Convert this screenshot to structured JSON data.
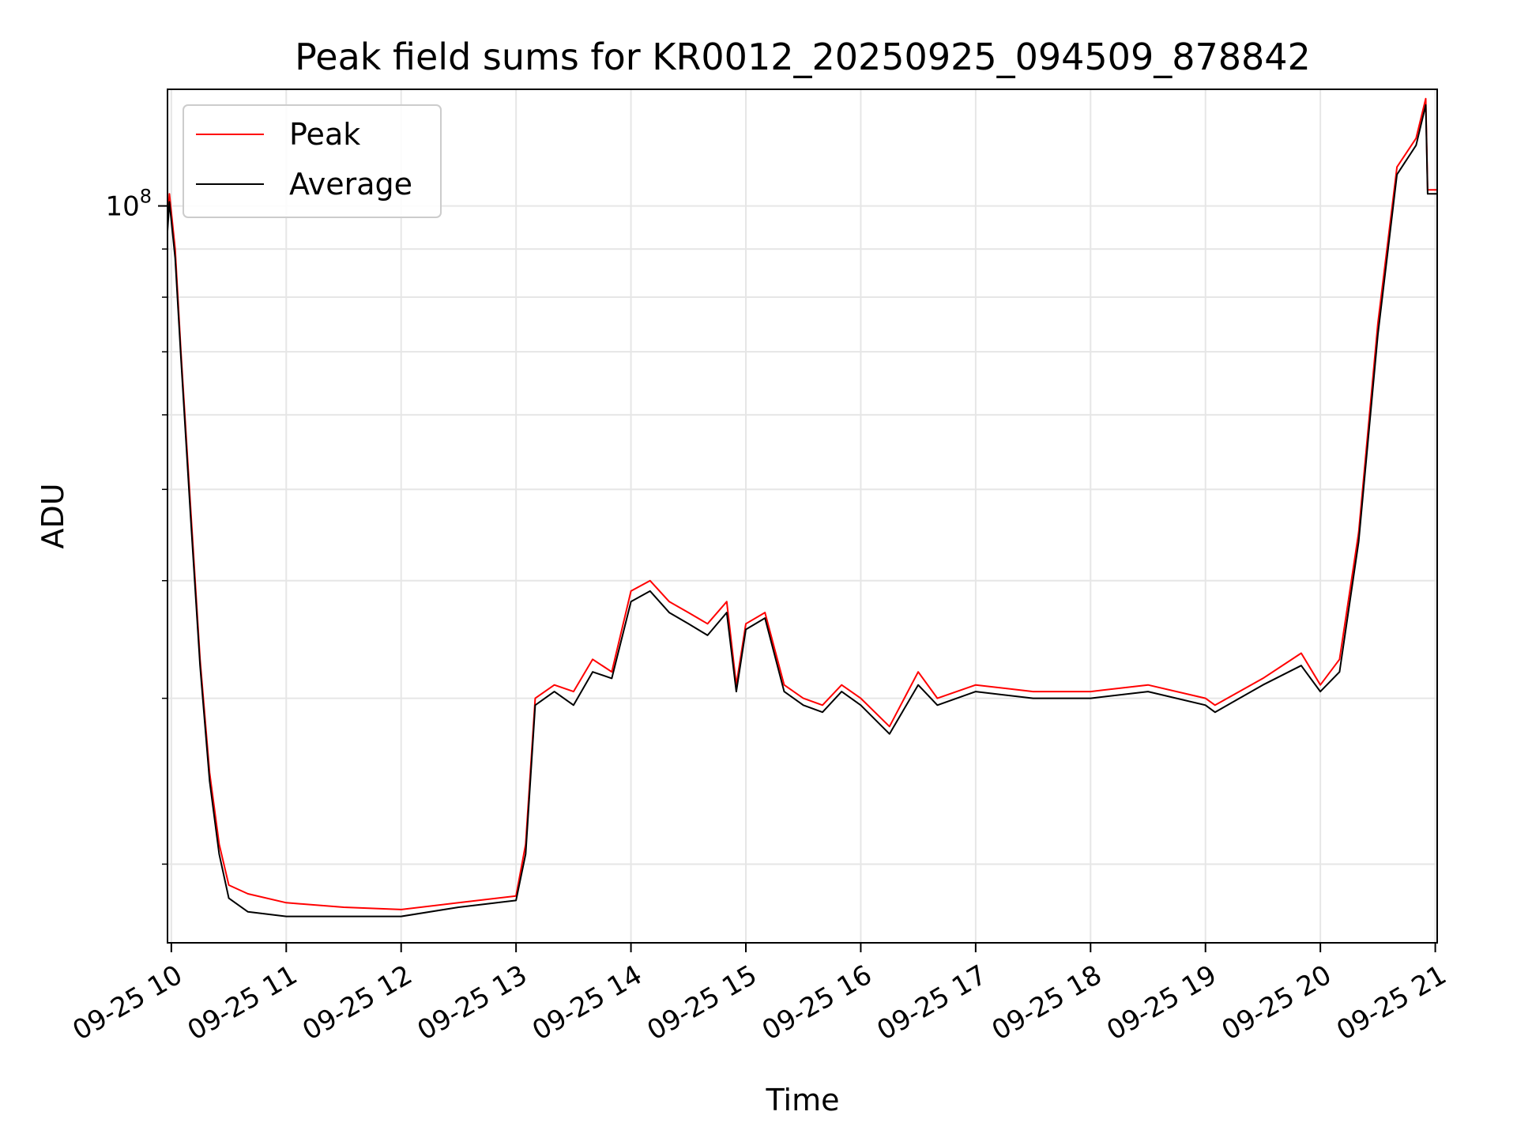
{
  "chart_data": {
    "type": "line",
    "title": "Peak field sums for KR0012_20250925_094509_878842",
    "xlabel": "Time",
    "ylabel": "ADU",
    "y_scale": "log",
    "grid": true,
    "legend_position": "top-left",
    "x_tick_labels": [
      "09-25 10",
      "09-25 11",
      "09-25 12",
      "09-25 13",
      "09-25 14",
      "09-25 15",
      "09-25 16",
      "09-25 17",
      "09-25 18",
      "09-25 19",
      "09-25 20",
      "09-25 21"
    ],
    "x_ticks": [
      "2025-09-25 10:00",
      "2025-09-25 11:00",
      "2025-09-25 12:00",
      "2025-09-25 13:00",
      "2025-09-25 14:00",
      "2025-09-25 15:00",
      "2025-09-25 16:00",
      "2025-09-25 17:00",
      "2025-09-25 18:00",
      "2025-09-25 19:00",
      "2025-09-25 20:00",
      "2025-09-25 21:00"
    ],
    "xlim": [
      "2025-09-25 09:58",
      "2025-09-25 21:01"
    ],
    "ylim": [
      16500000,
      133000000
    ],
    "y_major_ticks": [
      100000000
    ],
    "y_tick_labels": [
      "10^8"
    ],
    "y_minor_ticks": [
      20000000,
      30000000,
      40000000,
      50000000,
      60000000,
      70000000,
      80000000,
      90000000
    ],
    "series": [
      {
        "name": "Peak",
        "color": "#ff0000",
        "x": [
          "2025-09-25 09:58",
          "2025-09-25 09:59",
          "2025-09-25 10:02",
          "2025-09-25 10:05",
          "2025-09-25 10:10",
          "2025-09-25 10:15",
          "2025-09-25 10:20",
          "2025-09-25 10:25",
          "2025-09-25 10:30",
          "2025-09-25 10:40",
          "2025-09-25 11:00",
          "2025-09-25 11:30",
          "2025-09-25 12:00",
          "2025-09-25 12:30",
          "2025-09-25 13:00",
          "2025-09-25 13:05",
          "2025-09-25 13:10",
          "2025-09-25 13:20",
          "2025-09-25 13:30",
          "2025-09-25 13:40",
          "2025-09-25 13:50",
          "2025-09-25 14:00",
          "2025-09-25 14:10",
          "2025-09-25 14:20",
          "2025-09-25 14:30",
          "2025-09-25 14:40",
          "2025-09-25 14:50",
          "2025-09-25 14:55",
          "2025-09-25 15:00",
          "2025-09-25 15:10",
          "2025-09-25 15:20",
          "2025-09-25 15:30",
          "2025-09-25 15:40",
          "2025-09-25 15:50",
          "2025-09-25 16:00",
          "2025-09-25 16:15",
          "2025-09-25 16:30",
          "2025-09-25 16:40",
          "2025-09-25 17:00",
          "2025-09-25 17:30",
          "2025-09-25 18:00",
          "2025-09-25 18:30",
          "2025-09-25 19:00",
          "2025-09-25 19:05",
          "2025-09-25 19:30",
          "2025-09-25 19:50",
          "2025-09-25 20:00",
          "2025-09-25 20:10",
          "2025-09-25 20:20",
          "2025-09-25 20:30",
          "2025-09-25 20:40",
          "2025-09-25 20:50",
          "2025-09-25 20:55",
          "2025-09-25 20:56",
          "2025-09-25 21:01"
        ],
        "values": [
          95000000,
          103000000,
          90000000,
          70000000,
          48000000,
          33000000,
          25000000,
          21000000,
          19000000,
          18600000,
          18200000,
          18000000,
          17900000,
          18200000,
          18500000,
          21000000,
          30000000,
          31000000,
          30500000,
          33000000,
          32000000,
          39000000,
          40000000,
          38000000,
          37000000,
          36000000,
          38000000,
          31000000,
          36000000,
          37000000,
          31000000,
          30000000,
          29500000,
          31000000,
          30000000,
          28000000,
          32000000,
          30000000,
          31000000,
          30500000,
          30500000,
          31000000,
          30000000,
          29500000,
          31500000,
          33500000,
          31000000,
          33000000,
          45000000,
          75000000,
          110000000,
          118000000,
          130000000,
          104000000,
          104000000
        ]
      },
      {
        "name": "Average",
        "color": "#000000",
        "x": [
          "2025-09-25 09:58",
          "2025-09-25 09:59",
          "2025-09-25 10:02",
          "2025-09-25 10:05",
          "2025-09-25 10:10",
          "2025-09-25 10:15",
          "2025-09-25 10:20",
          "2025-09-25 10:25",
          "2025-09-25 10:30",
          "2025-09-25 10:40",
          "2025-09-25 11:00",
          "2025-09-25 11:30",
          "2025-09-25 12:00",
          "2025-09-25 12:30",
          "2025-09-25 13:00",
          "2025-09-25 13:05",
          "2025-09-25 13:10",
          "2025-09-25 13:20",
          "2025-09-25 13:30",
          "2025-09-25 13:40",
          "2025-09-25 13:50",
          "2025-09-25 14:00",
          "2025-09-25 14:10",
          "2025-09-25 14:20",
          "2025-09-25 14:30",
          "2025-09-25 14:40",
          "2025-09-25 14:50",
          "2025-09-25 14:55",
          "2025-09-25 15:00",
          "2025-09-25 15:10",
          "2025-09-25 15:20",
          "2025-09-25 15:30",
          "2025-09-25 15:40",
          "2025-09-25 15:50",
          "2025-09-25 16:00",
          "2025-09-25 16:15",
          "2025-09-25 16:30",
          "2025-09-25 16:40",
          "2025-09-25 17:00",
          "2025-09-25 17:30",
          "2025-09-25 18:00",
          "2025-09-25 18:30",
          "2025-09-25 19:00",
          "2025-09-25 19:05",
          "2025-09-25 19:30",
          "2025-09-25 19:50",
          "2025-09-25 20:00",
          "2025-09-25 20:10",
          "2025-09-25 20:20",
          "2025-09-25 20:30",
          "2025-09-25 20:40",
          "2025-09-25 20:50",
          "2025-09-25 20:55",
          "2025-09-25 20:56",
          "2025-09-25 21:01"
        ],
        "values": [
          94000000,
          101000000,
          88000000,
          69000000,
          47000000,
          32500000,
          24500000,
          20500000,
          18400000,
          17800000,
          17600000,
          17600000,
          17600000,
          18000000,
          18300000,
          20500000,
          29500000,
          30500000,
          29500000,
          32000000,
          31500000,
          38000000,
          39000000,
          37000000,
          36000000,
          35000000,
          37000000,
          30500000,
          35500000,
          36500000,
          30500000,
          29500000,
          29000000,
          30500000,
          29500000,
          27500000,
          31000000,
          29500000,
          30500000,
          30000000,
          30000000,
          30500000,
          29500000,
          29000000,
          31000000,
          32500000,
          30500000,
          32000000,
          44000000,
          73000000,
          108000000,
          116000000,
          128000000,
          103000000,
          103000000
        ]
      }
    ]
  }
}
